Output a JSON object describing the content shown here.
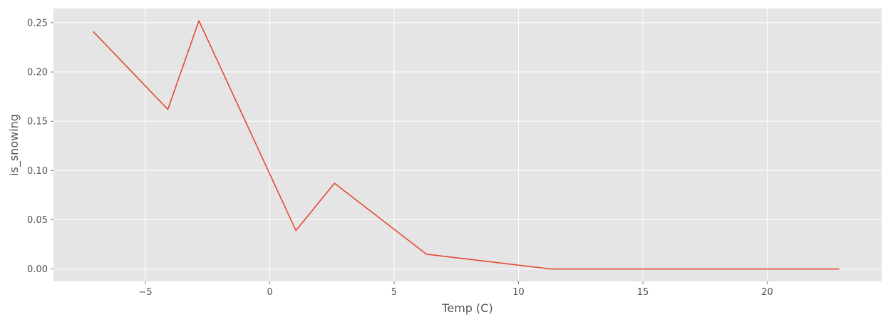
{
  "chart_data": {
    "type": "line",
    "title": "",
    "xlabel": "Temp (C)",
    "ylabel": "is_snowing",
    "xlim": [
      -8.7,
      24.6
    ],
    "ylim": [
      -0.0126,
      0.2644
    ],
    "xticks": [
      -5,
      0,
      5,
      10,
      15,
      20
    ],
    "xtick_labels": [
      "−5",
      "0",
      "5",
      "10",
      "15",
      "20"
    ],
    "yticks": [
      0.0,
      0.05,
      0.1,
      0.15,
      0.2,
      0.25
    ],
    "ytick_labels": [
      "0.00",
      "0.05",
      "0.10",
      "0.15",
      "0.20",
      "0.25"
    ],
    "grid": true,
    "series": [
      {
        "color": "#E24A33",
        "x": [
          -7.1,
          -4.1,
          -2.85,
          1.05,
          2.6,
          6.3,
          11.3,
          22.9
        ],
        "y": [
          0.241,
          0.162,
          0.252,
          0.039,
          0.087,
          0.015,
          0.0,
          0.0
        ]
      }
    ],
    "colors": {
      "background": "#E5E5E5",
      "grid": "#FFFFFF",
      "text": "#555555"
    }
  }
}
